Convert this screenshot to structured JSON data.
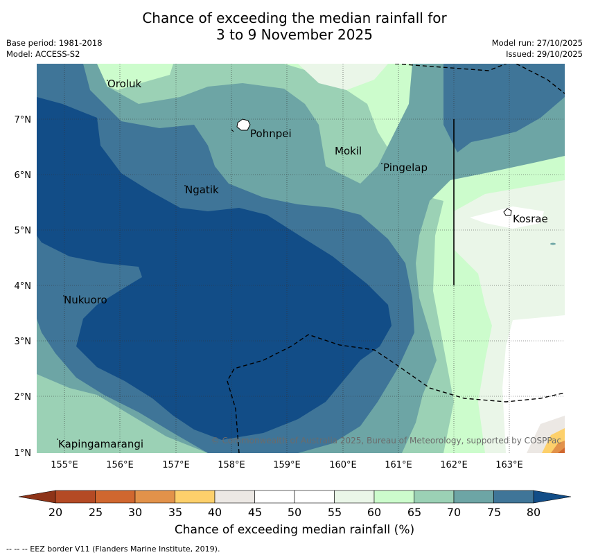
{
  "title": {
    "line1": "Chance of exceeding the median rainfall for",
    "line2": "3 to 9 November 2025"
  },
  "meta": {
    "base_period": "Base period: 1981-2018",
    "model": "Model: ACCESS-S2",
    "model_run": "Model run: 27/10/2025",
    "issued": "Issued: 29/10/2025"
  },
  "map": {
    "lat_ticks": [
      "7°N",
      "6°N",
      "5°N",
      "4°N",
      "3°N",
      "2°N",
      "1°N"
    ],
    "lon_ticks": [
      "155°E",
      "156°E",
      "157°E",
      "158°E",
      "159°E",
      "160°E",
      "161°E",
      "162°E",
      "163°E"
    ],
    "places": [
      "Oroluk",
      "Pohnpei",
      "Mokil",
      "Pingelap",
      "Ngatik",
      "Kosrae",
      "Nukuoro",
      "Kapingamarangi"
    ],
    "copyright": "© Commonwealth of Australia 2025, Bureau of Meteorology, supported by COSPPac"
  },
  "colorbar": {
    "labels": [
      "20",
      "25",
      "30",
      "35",
      "40",
      "45",
      "50",
      "55",
      "60",
      "65",
      "70",
      "75",
      "80"
    ],
    "colors": [
      "#8e3418",
      "#b44a24",
      "#d0672f",
      "#e2924a",
      "#fdd06b",
      "#ece8e4",
      "#ffffff",
      "#ffffff",
      "#eaf6e8",
      "#ccfccc",
      "#9bd1b5",
      "#6da5a5",
      "#3f7598",
      "#124d87"
    ],
    "title": "Chance of exceeding median rainfall (%)"
  },
  "footer": "--  --  -- EEZ border V11 (Flanders Marine Institute, 2019)."
}
